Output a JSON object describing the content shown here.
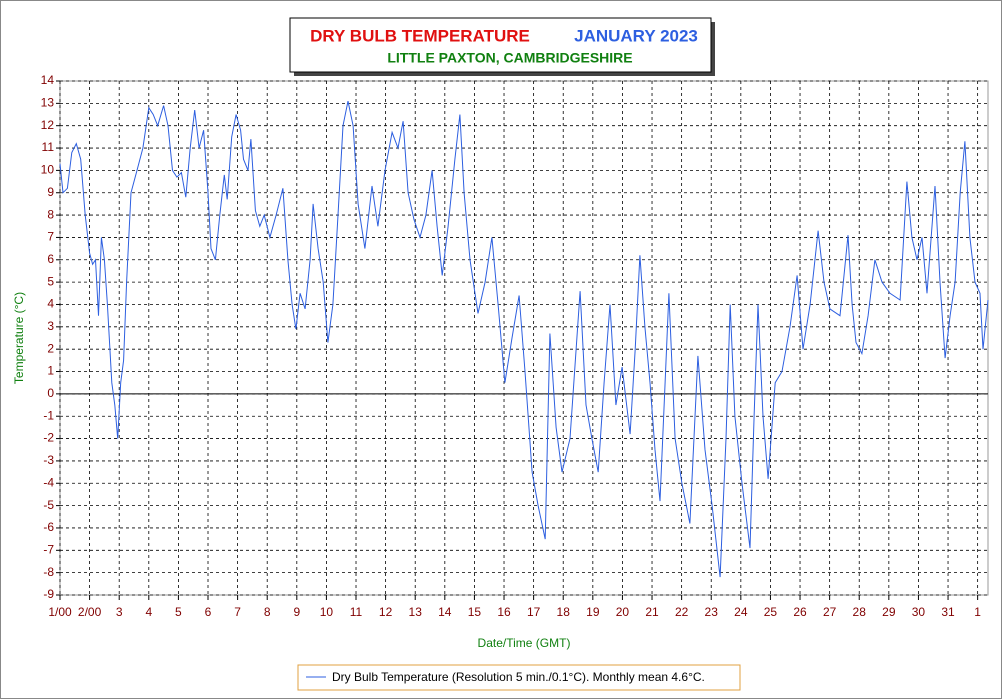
{
  "chart_data": {
    "type": "line",
    "title": "DRY BULB TEMPERATURE",
    "title_date": "JANUARY 2023",
    "subtitle": "LITTLE PAXTON, CAMBRIDGESHIRE",
    "x_label": "Date/Time (GMT)",
    "y_label": "Temperature (°C)",
    "xlim": [
      0,
      31.35
    ],
    "ylim": [
      -9,
      14
    ],
    "xticks": [
      {
        "value": 0,
        "label": "1/00"
      },
      {
        "value": 1,
        "label": "2/00"
      },
      {
        "value": 2,
        "label": "3"
      },
      {
        "value": 3,
        "label": "4"
      },
      {
        "value": 4,
        "label": "5"
      },
      {
        "value": 5,
        "label": "6"
      },
      {
        "value": 6,
        "label": "7"
      },
      {
        "value": 7,
        "label": "8"
      },
      {
        "value": 8,
        "label": "9"
      },
      {
        "value": 9,
        "label": "10"
      },
      {
        "value": 10,
        "label": "11"
      },
      {
        "value": 11,
        "label": "12"
      },
      {
        "value": 12,
        "label": "13"
      },
      {
        "value": 13,
        "label": "14"
      },
      {
        "value": 14,
        "label": "15"
      },
      {
        "value": 15,
        "label": "16"
      },
      {
        "value": 16,
        "label": "17"
      },
      {
        "value": 17,
        "label": "18"
      },
      {
        "value": 18,
        "label": "19"
      },
      {
        "value": 19,
        "label": "20"
      },
      {
        "value": 20,
        "label": "21"
      },
      {
        "value": 21,
        "label": "22"
      },
      {
        "value": 22,
        "label": "23"
      },
      {
        "value": 23,
        "label": "24"
      },
      {
        "value": 24,
        "label": "25"
      },
      {
        "value": 25,
        "label": "26"
      },
      {
        "value": 26,
        "label": "27"
      },
      {
        "value": 27,
        "label": "28"
      },
      {
        "value": 28,
        "label": "29"
      },
      {
        "value": 29,
        "label": "30"
      },
      {
        "value": 30,
        "label": "31"
      },
      {
        "value": 31,
        "label": "1"
      }
    ],
    "yticks": [
      -9,
      -8,
      -7,
      -6,
      -5,
      -4,
      -3,
      -2,
      -1,
      0,
      1,
      2,
      3,
      4,
      5,
      6,
      7,
      8,
      9,
      10,
      11,
      12,
      13,
      14
    ],
    "grid": true,
    "x": [
      0,
      0.1,
      0.25,
      0.4,
      0.55,
      0.7,
      0.85,
      1.0,
      1.1,
      1.2,
      1.3,
      1.4,
      1.5,
      1.6,
      1.75,
      1.85,
      1.95,
      2.05,
      2.15,
      2.25,
      2.4,
      2.6,
      2.8,
      3.0,
      3.15,
      3.3,
      3.5,
      3.65,
      3.8,
      3.95,
      4.1,
      4.25,
      4.4,
      4.55,
      4.7,
      4.85,
      5.0,
      5.1,
      5.25,
      5.4,
      5.55,
      5.65,
      5.8,
      5.95,
      6.1,
      6.2,
      6.35,
      6.45,
      6.6,
      6.75,
      6.9,
      7.09,
      7.3,
      7.53,
      7.7,
      7.84,
      7.97,
      8.11,
      8.28,
      8.45,
      8.55,
      8.72,
      8.89,
      9.05,
      9.22,
      9.39,
      9.56,
      9.73,
      9.9,
      10.07,
      10.3,
      10.54,
      10.74,
      10.98,
      11.22,
      11.42,
      11.59,
      11.76,
      11.96,
      12.16,
      12.36,
      12.57,
      12.74,
      12.91,
      13.11,
      13.34,
      13.51,
      13.65,
      13.85,
      14.12,
      14.36,
      14.59,
      14.8,
      15.03,
      15.27,
      15.51,
      15.71,
      15.95,
      16.15,
      16.39,
      16.55,
      16.76,
      16.96,
      17.23,
      17.57,
      17.77,
      17.97,
      18.18,
      18.38,
      18.58,
      18.78,
      18.99,
      19.26,
      19.43,
      19.59,
      19.76,
      19.93,
      20.1,
      20.27,
      20.44,
      20.57,
      20.78,
      21.01,
      21.28,
      21.55,
      21.79,
      22.03,
      22.3,
      22.5,
      22.64,
      22.8,
      23.04,
      23.31,
      23.45,
      23.58,
      23.75,
      23.92,
      24.16,
      24.39,
      24.66,
      24.9,
      25.1,
      25.34,
      25.61,
      25.81,
      26.01,
      26.35,
      26.62,
      26.76,
      26.89,
      27.09,
      27.3,
      27.53,
      27.77,
      28.04,
      28.38,
      28.61,
      28.78,
      28.95,
      29.12,
      29.29,
      29.56,
      29.73,
      29.9,
      30.07,
      30.24,
      30.41,
      30.57,
      30.74,
      30.91,
      31.08,
      31.18,
      31.35
    ],
    "series": [
      {
        "name": "Dry Bulb Temperature (Resolution 5 min./0.1°C). Monthly mean 4.6°C.",
        "color": "#2d5fe0",
        "values": [
          10.3,
          9.0,
          9.2,
          10.8,
          11.2,
          10.5,
          8.0,
          6.3,
          5.8,
          6.0,
          3.5,
          7.0,
          6.0,
          4.0,
          0.5,
          -0.5,
          -2.0,
          0.5,
          1.5,
          5.0,
          9.0,
          10.0,
          11.0,
          12.8,
          12.5,
          12.0,
          12.9,
          12.0,
          10.0,
          9.7,
          9.9,
          8.8,
          11.0,
          12.7,
          11.0,
          11.8,
          9.0,
          6.5,
          6.0,
          8.0,
          9.8,
          8.7,
          11.5,
          12.5,
          11.8,
          10.5,
          10.0,
          11.4,
          8.2,
          7.5,
          8.0,
          7.0,
          8.0,
          9.2,
          6.0,
          4.0,
          2.9,
          4.5,
          3.8,
          6.0,
          8.5,
          6.5,
          5.0,
          2.3,
          4.0,
          8.0,
          12.0,
          13.1,
          12.0,
          8.5,
          6.5,
          9.3,
          7.5,
          10.0,
          11.7,
          11.0,
          12.2,
          9.0,
          7.8,
          7.0,
          8.0,
          10.0,
          7.5,
          5.3,
          7.5,
          10.5,
          12.5,
          9.0,
          6.0,
          3.6,
          5.0,
          7.0,
          4.0,
          0.5,
          2.5,
          4.4,
          1.0,
          -3.5,
          -5.0,
          -6.5,
          2.7,
          -1.5,
          -3.5,
          -2.0,
          4.6,
          -0.5,
          -2.0,
          -3.5,
          0.5,
          4.0,
          -0.5,
          1.2,
          -1.8,
          2.0,
          6.2,
          3.0,
          0.5,
          -2.5,
          -4.8,
          0.5,
          4.5,
          -2.0,
          -4.0,
          -5.8,
          1.7,
          -2.5,
          -5.0,
          -8.2,
          -2.0,
          4.0,
          -1.0,
          -4.0,
          -6.9,
          -1.0,
          4.0,
          -1.0,
          -3.8,
          0.5,
          1.0,
          3.0,
          5.3,
          2.0,
          4.0,
          7.3,
          5.0,
          3.8,
          3.5,
          7.1,
          4.0,
          2.3,
          1.8,
          3.5,
          6.0,
          5.0,
          4.5,
          4.2,
          9.5,
          7.0,
          6.0,
          7.0,
          4.5,
          9.3,
          5.0,
          1.6,
          3.5,
          5.0,
          9.0,
          11.3,
          7.0,
          5.0,
          4.5,
          2.0,
          4.2
        ]
      }
    ]
  }
}
